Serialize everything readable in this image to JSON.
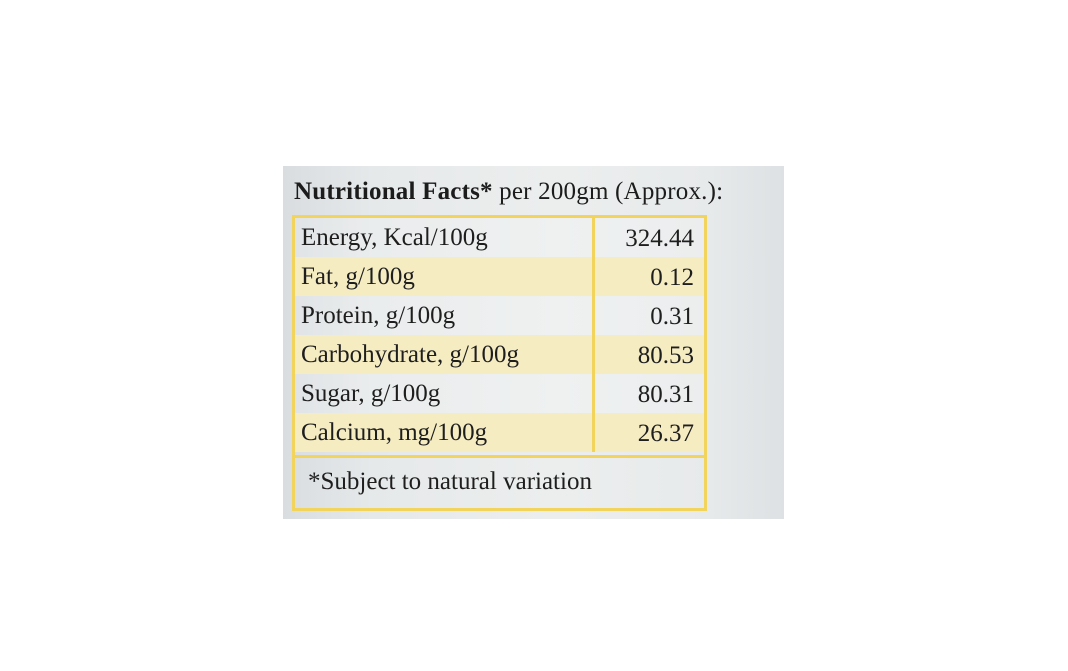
{
  "label": {
    "heading_bold": "Nutritional Facts*",
    "heading_rest": " per 200gm (Approx.):",
    "rows": [
      {
        "name": "Energy, Kcal/100g",
        "value": "324.44"
      },
      {
        "name": "Fat, g/100g",
        "value": "0.12"
      },
      {
        "name": "Protein, g/100g",
        "value": "0.31"
      },
      {
        "name": "Carbohydrate, g/100g",
        "value": "80.53"
      },
      {
        "name": "Sugar, g/100g",
        "value": "80.31"
      },
      {
        "name": "Calcium, mg/100g",
        "value": "26.37"
      }
    ],
    "footnote": "*Subject to natural variation"
  },
  "colors": {
    "border": "#f2d35b",
    "stripe": "#f5ecc2",
    "label_background": "#eceeee",
    "text": "#1e1e1e"
  }
}
